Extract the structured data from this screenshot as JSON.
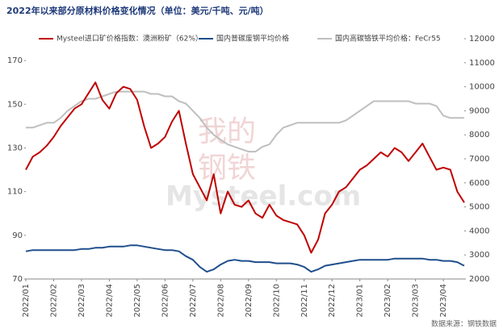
{
  "chart_data": {
    "type": "line",
    "title": "2022年以来部分原材料价格变化情况（单位：美元/千吨、元/吨）",
    "watermark": [
      "我的",
      "钢铁",
      "Mysteel.com"
    ],
    "source": "数据来源：钢铁数据",
    "categories": [
      "2022/01",
      null,
      null,
      null,
      "2022/02",
      null,
      null,
      null,
      "2022/03",
      null,
      null,
      null,
      "2022/04",
      null,
      null,
      null,
      "2022/05",
      null,
      null,
      null,
      "2022/06",
      null,
      null,
      null,
      "2022/07",
      null,
      null,
      null,
      "2022/08",
      null,
      null,
      null,
      "2022/09",
      null,
      null,
      null,
      "2022/10",
      null,
      null,
      null,
      "2022/11",
      null,
      null,
      null,
      "2022/12",
      null,
      null,
      null,
      "2023/01",
      null,
      null,
      null,
      "2023/02",
      null,
      null,
      null,
      "2023/03",
      null,
      null,
      null,
      "2023/04",
      null,
      null,
      null
    ],
    "ylim": [
      70,
      180
    ],
    "yticks": [
      70,
      90,
      110,
      130,
      150,
      170
    ],
    "y2lim": [
      2000,
      12000
    ],
    "y2ticks": [
      2000,
      3000,
      4000,
      5000,
      6000,
      7000,
      8000,
      9000,
      10000,
      11000,
      12000
    ],
    "grid": false,
    "series": [
      {
        "name": "Mysteel进口矿价格指数：澳洲粉矿（62%）",
        "color": "#c00000",
        "values": [
          120,
          126,
          128,
          131,
          135,
          140,
          144,
          148,
          150,
          155,
          160,
          152,
          148,
          155,
          158,
          157,
          152,
          140,
          130,
          132,
          135,
          142,
          147,
          132,
          118,
          112,
          106,
          118,
          100,
          110,
          104,
          103,
          106,
          100,
          98,
          104,
          99,
          97,
          96,
          95,
          90,
          82,
          88,
          100,
          104,
          110,
          112,
          116,
          120,
          122,
          125,
          128,
          126,
          130,
          128,
          124,
          128,
          132,
          126,
          120,
          121,
          120,
          110,
          105
        ]
      },
      {
        "name": "国内普碳废钢平均价格",
        "color": "#1f4e8c",
        "axis": "y2",
        "values": [
          3150,
          3200,
          3200,
          3200,
          3200,
          3200,
          3200,
          3200,
          3250,
          3250,
          3300,
          3300,
          3350,
          3350,
          3350,
          3400,
          3400,
          3350,
          3300,
          3250,
          3200,
          3200,
          3150,
          2950,
          2800,
          2500,
          2300,
          2400,
          2600,
          2750,
          2800,
          2750,
          2750,
          2700,
          2700,
          2700,
          2650,
          2650,
          2650,
          2600,
          2500,
          2300,
          2400,
          2550,
          2600,
          2650,
          2700,
          2750,
          2800,
          2800,
          2800,
          2800,
          2800,
          2850,
          2850,
          2850,
          2850,
          2850,
          2800,
          2800,
          2750,
          2750,
          2700,
          2550
        ]
      },
      {
        "name": "国内高碳铬铁平均价格：FeCr55",
        "color": "#bfbfbf",
        "axis": "y2",
        "values": [
          8300,
          8300,
          8400,
          8500,
          8500,
          8700,
          9000,
          9200,
          9400,
          9500,
          9500,
          9600,
          9700,
          9800,
          9800,
          9800,
          9800,
          9800,
          9700,
          9700,
          9600,
          9600,
          9400,
          9300,
          9000,
          8700,
          8300,
          8000,
          7800,
          7600,
          7500,
          7400,
          7300,
          7300,
          7500,
          7600,
          8000,
          8300,
          8400,
          8500,
          8500,
          8500,
          8500,
          8500,
          8500,
          8500,
          8600,
          8800,
          9000,
          9200,
          9400,
          9400,
          9400,
          9400,
          9400,
          9400,
          9300,
          9300,
          9300,
          9200,
          8800,
          8700,
          8700,
          8700
        ]
      }
    ]
  }
}
